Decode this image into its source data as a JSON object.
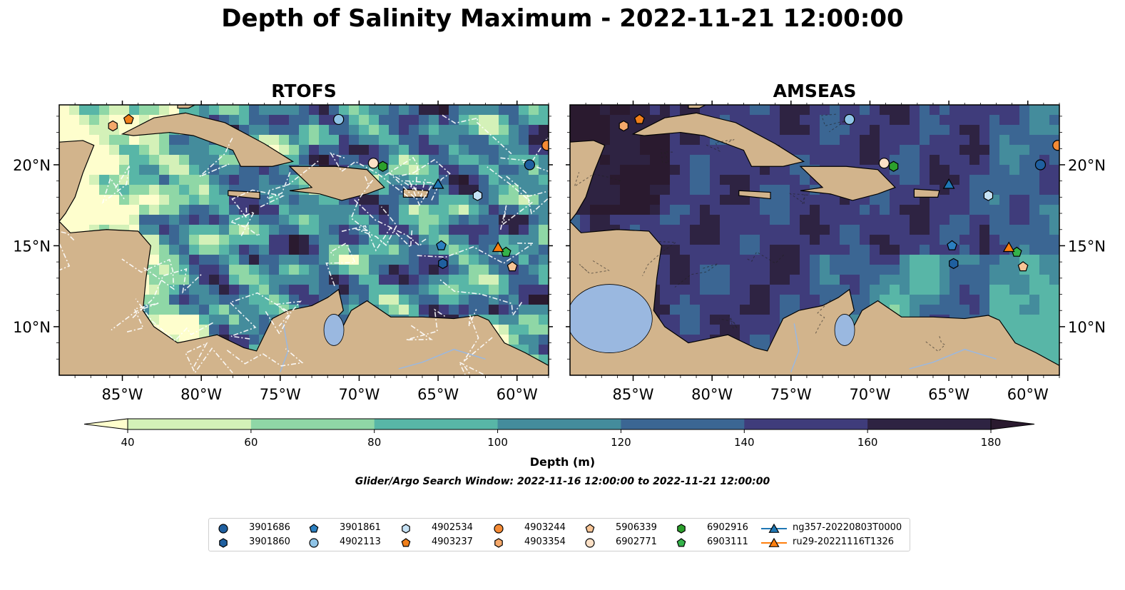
{
  "figure": {
    "title": "Depth of Salinity Maximum - 2022-11-21 12:00:00",
    "search_window": "Glider/Argo Search Window: 2022-11-16 12:00:00 to 2022-11-21 12:00:00"
  },
  "chart_data": [
    {
      "type": "heatmap",
      "title": "RTOFS",
      "x_ticks": [
        "85°W",
        "80°W",
        "75°W",
        "70°W",
        "65°W",
        "60°W"
      ],
      "y_ticks": [
        "20°N",
        "15°N",
        "10°N"
      ],
      "xlim": [
        -89,
        -58
      ],
      "ylim": [
        7,
        23.7
      ],
      "land_color": "#d2b48c",
      "pattern": "rtofs"
    },
    {
      "type": "heatmap",
      "title": "AMSEAS",
      "x_ticks": [
        "85°W",
        "80°W",
        "75°W",
        "70°W",
        "65°W",
        "60°W"
      ],
      "y_ticks": [
        "20°N",
        "15°N",
        "10°N"
      ],
      "xlim": [
        -89,
        -58
      ],
      "ylim": [
        7,
        23.7
      ],
      "land_color": "#d2b48c",
      "pattern": "amseas"
    }
  ],
  "colorbar": {
    "label": "Depth (m)",
    "levels": [
      40,
      60,
      80,
      100,
      120,
      140,
      160,
      180
    ],
    "colors": [
      "#fefecd",
      "#d4f1b8",
      "#8fd7a6",
      "#58b6a7",
      "#448c9c",
      "#3b6693",
      "#3f3c7b",
      "#2e2342",
      "#2a1a2f"
    ],
    "tick_labels": [
      "40",
      "60",
      "80",
      "100",
      "120",
      "140",
      "160",
      "180"
    ]
  },
  "platforms": [
    {
      "id": "3901686",
      "marker": "circle",
      "color": "#1f5f9f",
      "lon": -59.2,
      "lat": 20.0
    },
    {
      "id": "3901860",
      "marker": "hexagon",
      "color": "#1f5f9f",
      "lon": -64.7,
      "lat": 13.9
    },
    {
      "id": "3901861",
      "marker": "pentagon",
      "color": "#2b7fc0",
      "lon": -64.8,
      "lat": 15.0
    },
    {
      "id": "4902113",
      "marker": "circle",
      "color": "#8ec3e6",
      "lon": -71.3,
      "lat": 22.8
    },
    {
      "id": "4902534",
      "marker": "hexagon",
      "color": "#c6e2f5",
      "lon": -62.5,
      "lat": 18.1
    },
    {
      "id": "4903237",
      "marker": "pentagon",
      "color": "#f07f1a",
      "lon": -84.6,
      "lat": 22.8
    },
    {
      "id": "4903244",
      "marker": "circle",
      "color": "#f58b35",
      "lon": -58.1,
      "lat": 21.2
    },
    {
      "id": "4903354",
      "marker": "hexagon",
      "color": "#f5a86a",
      "lon": -85.6,
      "lat": 22.4
    },
    {
      "id": "5906339",
      "marker": "pentagon",
      "color": "#f8c596",
      "lon": -60.3,
      "lat": 13.7
    },
    {
      "id": "6902771",
      "marker": "circle",
      "color": "#fce0c6",
      "lon": -69.1,
      "lat": 20.1
    },
    {
      "id": "6902916",
      "marker": "hexagon",
      "color": "#2ca02c",
      "lon": -68.5,
      "lat": 19.9
    },
    {
      "id": "6903111",
      "marker": "pentagon",
      "color": "#34b34a",
      "lon": -60.7,
      "lat": 14.6
    },
    {
      "id": "ng357-20220803T0000",
      "marker": "triangle",
      "color": "#1f77b4",
      "lon": -65.0,
      "lat": 18.8
    },
    {
      "id": "ru29-20221116T1326",
      "marker": "triangle",
      "color": "#ff7f0e",
      "lon": -61.2,
      "lat": 14.9
    }
  ]
}
